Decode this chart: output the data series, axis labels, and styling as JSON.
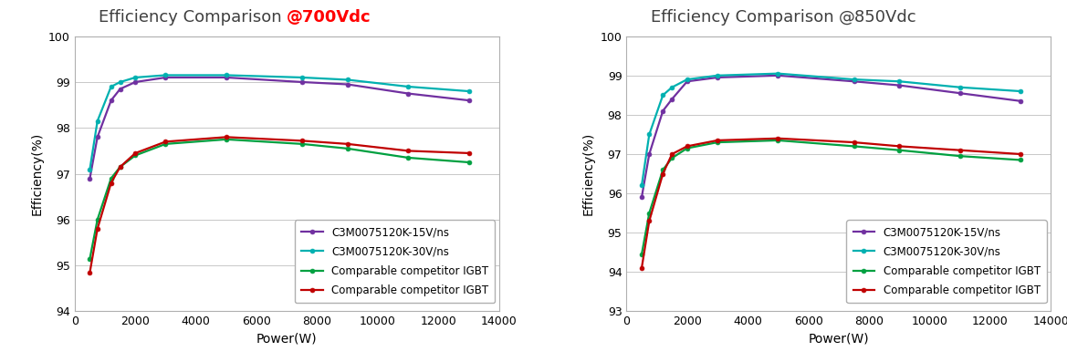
{
  "charts": [
    {
      "title_normal": "Efficiency Comparison ",
      "title_colored": "@700Vdc",
      "title_color": "#ff0000",
      "title_bold": true,
      "xlabel": "Power(W)",
      "ylabel": "Efficiency(%)",
      "ylim": [
        94,
        100
      ],
      "yticks": [
        94,
        95,
        96,
        97,
        98,
        99,
        100
      ],
      "xlim": [
        0,
        14000
      ],
      "xticks": [
        0,
        2000,
        4000,
        6000,
        8000,
        10000,
        12000,
        14000
      ],
      "series": [
        {
          "label": "C3M0075120K-15V/ns",
          "color": "#7030a0",
          "x": [
            500,
            750,
            1200,
            1500,
            2000,
            3000,
            5000,
            7500,
            9000,
            11000,
            13000
          ],
          "y": [
            96.9,
            97.8,
            98.6,
            98.85,
            99.0,
            99.1,
            99.1,
            99.0,
            98.95,
            98.75,
            98.6
          ]
        },
        {
          "label": "C3M0075120K-30V/ns",
          "color": "#00b0b0",
          "x": [
            500,
            750,
            1200,
            1500,
            2000,
            3000,
            5000,
            7500,
            9000,
            11000,
            13000
          ],
          "y": [
            97.1,
            98.15,
            98.9,
            99.0,
            99.1,
            99.15,
            99.15,
            99.1,
            99.05,
            98.9,
            98.8
          ]
        },
        {
          "label": "Comparable competitor IGBT",
          "color": "#00a040",
          "x": [
            500,
            750,
            1200,
            1500,
            2000,
            3000,
            5000,
            7500,
            9000,
            11000,
            13000
          ],
          "y": [
            95.15,
            96.0,
            96.9,
            97.15,
            97.4,
            97.65,
            97.75,
            97.65,
            97.55,
            97.35,
            97.25
          ]
        },
        {
          "label": "Comparable competitor IGBT",
          "color": "#c00000",
          "x": [
            500,
            750,
            1200,
            1500,
            2000,
            3000,
            5000,
            7500,
            9000,
            11000,
            13000
          ],
          "y": [
            94.85,
            95.8,
            96.8,
            97.15,
            97.45,
            97.7,
            97.8,
            97.72,
            97.65,
            97.5,
            97.45
          ]
        }
      ]
    },
    {
      "title_normal": "Efficiency Comparison ",
      "title_colored": "@850Vdc",
      "title_color": "#404040",
      "title_bold": false,
      "xlabel": "Power(W)",
      "ylabel": "Efficiency(%)",
      "ylim": [
        93,
        100
      ],
      "yticks": [
        93,
        94,
        95,
        96,
        97,
        98,
        99,
        100
      ],
      "xlim": [
        0,
        14000
      ],
      "xticks": [
        0,
        2000,
        4000,
        6000,
        8000,
        10000,
        12000,
        14000
      ],
      "series": [
        {
          "label": "C3M0075120K-15V/ns",
          "color": "#7030a0",
          "x": [
            500,
            750,
            1200,
            1500,
            2000,
            3000,
            5000,
            7500,
            9000,
            11000,
            13000
          ],
          "y": [
            95.9,
            97.0,
            98.1,
            98.4,
            98.85,
            98.95,
            99.0,
            98.85,
            98.75,
            98.55,
            98.35
          ]
        },
        {
          "label": "C3M0075120K-30V/ns",
          "color": "#00b0b0",
          "x": [
            500,
            750,
            1200,
            1500,
            2000,
            3000,
            5000,
            7500,
            9000,
            11000,
            13000
          ],
          "y": [
            96.2,
            97.5,
            98.5,
            98.7,
            98.9,
            99.0,
            99.05,
            98.9,
            98.85,
            98.7,
            98.6
          ]
        },
        {
          "label": "Comparable competitor IGBT",
          "color": "#00a040",
          "x": [
            500,
            750,
            1200,
            1500,
            2000,
            3000,
            5000,
            7500,
            9000,
            11000,
            13000
          ],
          "y": [
            94.45,
            95.5,
            96.6,
            96.9,
            97.15,
            97.3,
            97.35,
            97.2,
            97.1,
            96.95,
            96.85
          ]
        },
        {
          "label": "Comparable competitor IGBT",
          "color": "#c00000",
          "x": [
            500,
            750,
            1200,
            1500,
            2000,
            3000,
            5000,
            7500,
            9000,
            11000,
            13000
          ],
          "y": [
            94.1,
            95.3,
            96.5,
            97.0,
            97.2,
            97.35,
            97.4,
            97.3,
            97.2,
            97.1,
            97.0
          ]
        }
      ]
    }
  ],
  "bg_color": "#ffffff",
  "grid_color": "#c8c8c8",
  "marker": "o",
  "markersize": 3.5,
  "linewidth": 1.6
}
